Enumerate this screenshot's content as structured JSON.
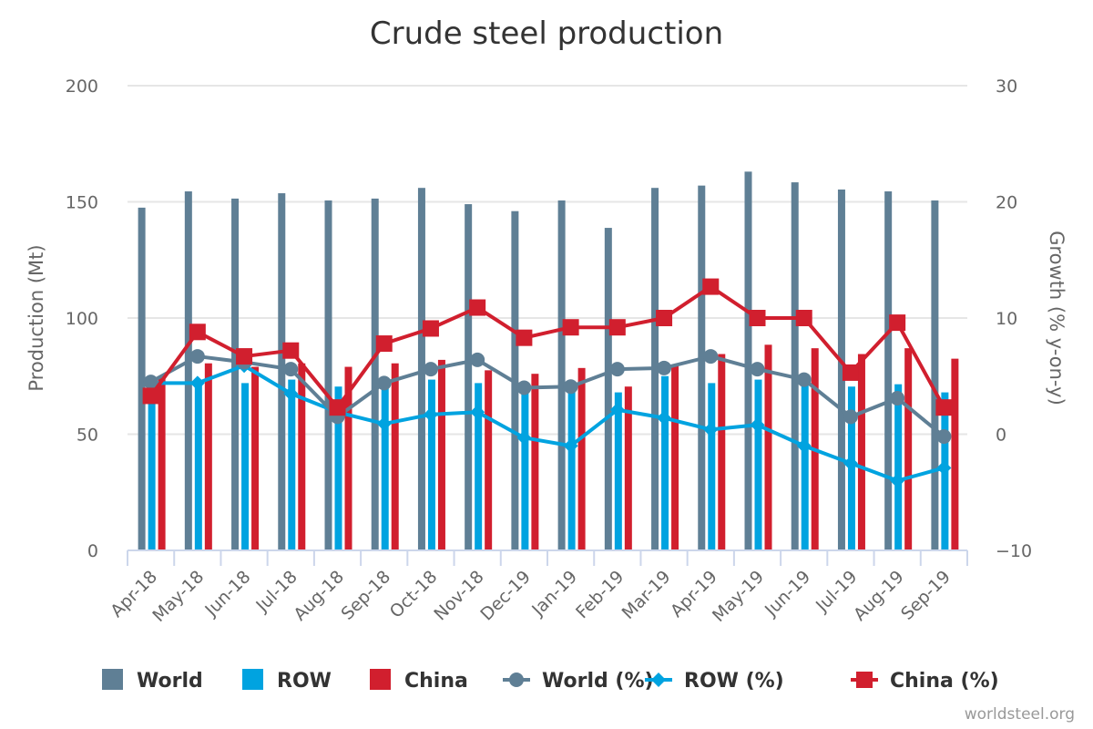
{
  "chart_data": {
    "type": "bar",
    "title": "Crude steel production",
    "xlabel": "",
    "ylabel": "Production (Mt)",
    "y2label": "Growth (% y-on-y)",
    "ylim": [
      0,
      200
    ],
    "y2lim": [
      -10,
      30
    ],
    "yticks": [
      "0",
      "50",
      "100",
      "150",
      "200"
    ],
    "y2ticks": [
      "−10",
      "0",
      "10",
      "20",
      "30"
    ],
    "grid": true,
    "legend_position": "bottom",
    "categories": [
      "Apr-18",
      "May-18",
      "Jun-18",
      "Jul-18",
      "Aug-18",
      "Sep-18",
      "Oct-18",
      "Nov-18",
      "Dec-19",
      "Jan-19",
      "Feb-19",
      "Mar-19",
      "Apr-19",
      "May-19",
      "Jun-19",
      "Jul-19",
      "Aug-19",
      "Sep-19"
    ],
    "series": [
      {
        "name": "World",
        "kind": "bar",
        "axis": "left",
        "color": "#5f7f95",
        "values": [
          147.5,
          154.5,
          151.4,
          153.7,
          150.6,
          151.4,
          156.0,
          149.0,
          146.0,
          150.6,
          138.8,
          156.0,
          157.0,
          163.0,
          158.4,
          155.3,
          154.5,
          150.6
        ]
      },
      {
        "name": "ROW",
        "kind": "bar",
        "axis": "left",
        "color": "#00a3e0",
        "values": [
          72.0,
          72.0,
          72.0,
          73.5,
          70.5,
          70.5,
          73.5,
          72.0,
          70.0,
          71.0,
          68.0,
          75.0,
          72.0,
          73.5,
          75.0,
          70.5,
          71.5,
          68.0
        ]
      },
      {
        "name": "China",
        "kind": "bar",
        "axis": "left",
        "color": "#d11f2e",
        "values": [
          75.0,
          80.5,
          79.0,
          80.5,
          79.0,
          80.5,
          82.0,
          77.5,
          76.0,
          78.5,
          70.5,
          79.5,
          84.5,
          88.5,
          87.0,
          84.5,
          87.0,
          82.5
        ]
      },
      {
        "name": "World (%)",
        "kind": "line",
        "marker": "circle",
        "axis": "right",
        "color": "#5f7f95",
        "values": [
          4.5,
          6.7,
          6.2,
          5.6,
          1.5,
          4.4,
          5.6,
          6.4,
          4.0,
          4.1,
          5.6,
          5.7,
          6.7,
          5.6,
          4.7,
          1.5,
          3.1,
          -0.2
        ]
      },
      {
        "name": "ROW (%)",
        "kind": "line",
        "marker": "diamond",
        "axis": "right",
        "color": "#00a3e0",
        "values": [
          4.4,
          4.4,
          5.9,
          3.5,
          1.9,
          0.9,
          1.7,
          1.9,
          -0.3,
          -1.0,
          2.1,
          1.4,
          0.4,
          0.8,
          -1.0,
          -2.5,
          -4.0,
          -2.9
        ]
      },
      {
        "name": "China (%)",
        "kind": "line",
        "marker": "square",
        "axis": "right",
        "color": "#d11f2e",
        "values": [
          3.3,
          8.8,
          6.7,
          7.2,
          2.3,
          7.8,
          9.1,
          10.9,
          8.3,
          9.2,
          9.2,
          10.0,
          12.7,
          10.0,
          10.0,
          5.3,
          9.6,
          2.3
        ]
      }
    ]
  },
  "credit": "worldsteel.org"
}
